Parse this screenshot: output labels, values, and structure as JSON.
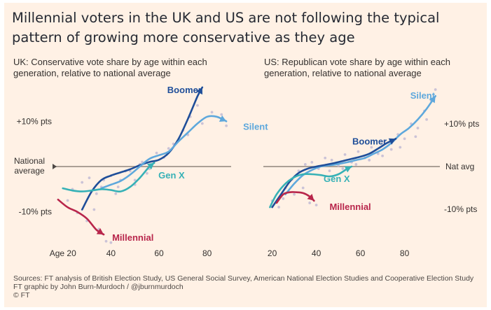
{
  "headline": "Millennial voters in the UK and US are not following the typical pattern of growing more conservative as they age",
  "footer": {
    "sources": "Sources: FT analysis of British Election Study, US General Social Survey, American National Election Studies and Cooperative Election Study",
    "credit": "FT graphic by John Burn-Murdoch / @jburnmurdoch",
    "copyright": "© FT"
  },
  "colors": {
    "background": "#fff1e5",
    "boomer": "#1f4e99",
    "silent": "#5ea8dc",
    "genx": "#36b1b6",
    "millennial": "#b8264b",
    "baseline": "#8f857d",
    "points": "#b9b3d2"
  },
  "chart_data": [
    {
      "type": "line",
      "panel": "UK",
      "title": "UK: Conservative vote share by age within each generation, relative to national average",
      "xlabel": "",
      "ylabel": "",
      "xlim": [
        16,
        90
      ],
      "ylim": [
        -17,
        17
      ],
      "x_ticks": [
        {
          "value": 20,
          "label": "Age 20"
        },
        {
          "value": 40,
          "label": "40"
        },
        {
          "value": 60,
          "label": "60"
        },
        {
          "value": 80,
          "label": "80"
        }
      ],
      "y_ticks": [
        {
          "value": 10,
          "label": "+10% pts"
        },
        {
          "value": -10,
          "label": "-10% pts"
        }
      ],
      "reference_line": {
        "value": 0,
        "label": "National average"
      },
      "grid": false,
      "legend": "direct labels on lines",
      "series": [
        {
          "name": "Boomer",
          "color": "#1f4e99",
          "x": [
            28,
            32,
            36,
            40,
            44,
            48,
            52,
            56,
            60,
            64,
            68,
            72,
            76,
            78
          ],
          "y": [
            -9.5,
            -5.5,
            -3.0,
            -2.0,
            -1.3,
            -0.6,
            0.3,
            1.0,
            1.5,
            3.0,
            6.0,
            10.5,
            15.5,
            17.5
          ]
        },
        {
          "name": "Silent",
          "color": "#5ea8dc",
          "x": [
            36,
            40,
            44,
            48,
            52,
            56,
            60,
            64,
            68,
            72,
            76,
            80,
            84,
            88
          ],
          "y": [
            -4.8,
            -4.0,
            -3.2,
            -1.8,
            0.0,
            1.7,
            2.5,
            3.3,
            5.5,
            7.5,
            9.5,
            11.0,
            11.0,
            10.0
          ]
        },
        {
          "name": "Gen X",
          "color": "#36b1b6",
          "x": [
            20,
            24,
            28,
            32,
            36,
            40,
            44,
            48,
            52,
            56,
            58
          ],
          "y": [
            -4.8,
            -5.3,
            -5.5,
            -5.3,
            -5.0,
            -5.2,
            -5.5,
            -4.5,
            -2.5,
            0.0,
            0.8
          ]
        },
        {
          "name": "Millennial",
          "color": "#b8264b",
          "x": [
            18,
            22,
            26,
            30,
            34,
            37
          ],
          "y": [
            -7.3,
            -9.0,
            -10.0,
            -11.5,
            -14.0,
            -15.0
          ]
        }
      ],
      "scatter_points": [
        [
          22,
          -7.5
        ],
        [
          26,
          -10.2
        ],
        [
          30,
          -12.0
        ],
        [
          33,
          -9.5
        ],
        [
          35,
          -13.8
        ],
        [
          38,
          -16.5
        ],
        [
          40,
          -16.8
        ],
        [
          28,
          -3.5
        ],
        [
          31,
          -2.5
        ],
        [
          34,
          -6.0
        ],
        [
          37,
          -3.0
        ],
        [
          40,
          -2.0
        ],
        [
          43,
          -4.5
        ],
        [
          46,
          -1.0
        ],
        [
          50,
          -3.0
        ],
        [
          53,
          1.0
        ],
        [
          56,
          -0.5
        ],
        [
          59,
          3.0
        ],
        [
          62,
          2.0
        ],
        [
          66,
          5.0
        ],
        [
          70,
          8.0
        ],
        [
          73,
          11.0
        ],
        [
          76,
          13.5
        ],
        [
          44,
          -3.0
        ],
        [
          48,
          -1.0
        ],
        [
          52,
          0.5
        ],
        [
          64,
          4.0
        ],
        [
          72,
          7.0
        ],
        [
          78,
          9.5
        ],
        [
          82,
          12.0
        ],
        [
          86,
          11.5
        ],
        [
          88,
          9.0
        ],
        [
          24,
          -5.0
        ],
        [
          36,
          -4.5
        ],
        [
          42,
          -6.0
        ],
        [
          50,
          -4.0
        ],
        [
          55,
          -1.5
        ]
      ],
      "annotations": [
        {
          "text": "Boomer",
          "series": "Boomer"
        },
        {
          "text": "Silent",
          "series": "Silent"
        },
        {
          "text": "Gen X",
          "series": "Gen X"
        },
        {
          "text": "Millennial",
          "series": "Millennial"
        }
      ]
    },
    {
      "type": "line",
      "panel": "US",
      "title": "US: Republican vote share by age within each generation, relative to national average",
      "xlabel": "",
      "ylabel": "",
      "xlim": [
        16,
        96
      ],
      "ylim": [
        -18,
        18
      ],
      "x_ticks": [
        {
          "value": 20,
          "label": "20"
        },
        {
          "value": 40,
          "label": "40"
        },
        {
          "value": 60,
          "label": "60"
        },
        {
          "value": 80,
          "label": "80"
        }
      ],
      "y_ticks": [
        {
          "value": 10,
          "label": "+10% pts"
        },
        {
          "value": -10,
          "label": "-10% pts"
        }
      ],
      "reference_line": {
        "value": 0,
        "label": "Nat avg"
      },
      "grid": false,
      "legend": "direct labels on lines",
      "series": [
        {
          "name": "Silent",
          "color": "#5ea8dc",
          "x": [
            26,
            30,
            34,
            38,
            42,
            46,
            50,
            54,
            58,
            62,
            66,
            70,
            74,
            78,
            82,
            86,
            90,
            94
          ],
          "y": [
            -6.5,
            -4.0,
            -2.0,
            -0.8,
            0.0,
            0.3,
            0.6,
            1.0,
            1.5,
            2.0,
            3.0,
            4.0,
            5.5,
            7.5,
            9.0,
            11.0,
            13.5,
            16.5
          ]
        },
        {
          "name": "Boomer",
          "color": "#1f4e99",
          "x": [
            20,
            24,
            28,
            32,
            36,
            40,
            44,
            48,
            52,
            56,
            60,
            64,
            68,
            72,
            76
          ],
          "y": [
            -9.5,
            -6.5,
            -3.5,
            -1.5,
            -0.5,
            0.0,
            0.4,
            0.8,
            1.3,
            1.8,
            2.3,
            3.0,
            4.2,
            5.5,
            6.5
          ]
        },
        {
          "name": "Gen X",
          "color": "#36b1b6",
          "x": [
            19,
            22,
            26,
            30,
            34,
            38,
            42,
            46,
            50,
            54,
            56
          ],
          "y": [
            -9.5,
            -6.5,
            -4.0,
            -2.5,
            -1.8,
            -1.8,
            -2.0,
            -2.3,
            -1.8,
            -0.5,
            0.0
          ]
        },
        {
          "name": "Millennial",
          "color": "#b8264b",
          "x": [
            22,
            25,
            28,
            31,
            34,
            37,
            39
          ],
          "y": [
            -8.5,
            -6.5,
            -6.0,
            -6.0,
            -6.2,
            -7.0,
            -8.0
          ]
        }
      ],
      "scatter_points": [
        [
          20,
          -8.0
        ],
        [
          23,
          -9.5
        ],
        [
          26,
          -5.0
        ],
        [
          29,
          -3.0
        ],
        [
          32,
          -1.0
        ],
        [
          35,
          0.5
        ],
        [
          38,
          1.0
        ],
        [
          41,
          -0.5
        ],
        [
          44,
          2.0
        ],
        [
          47,
          1.5
        ],
        [
          50,
          0.2
        ],
        [
          53,
          2.8
        ],
        [
          56,
          1.0
        ],
        [
          59,
          3.5
        ],
        [
          62,
          2.0
        ],
        [
          65,
          4.5
        ],
        [
          68,
          3.0
        ],
        [
          71,
          6.0
        ],
        [
          74,
          4.0
        ],
        [
          77,
          7.5
        ],
        [
          80,
          6.5
        ],
        [
          83,
          10.0
        ],
        [
          86,
          9.0
        ],
        [
          89,
          13.0
        ],
        [
          92,
          15.5
        ],
        [
          94,
          18.0
        ],
        [
          30,
          -6.5
        ],
        [
          34,
          -5.0
        ],
        [
          37,
          -8.5
        ],
        [
          40,
          -9.0
        ],
        [
          25,
          -7.5
        ],
        [
          46,
          -1.0
        ],
        [
          52,
          -0.5
        ],
        [
          58,
          0.5
        ],
        [
          64,
          1.5
        ],
        [
          70,
          2.5
        ],
        [
          78,
          4.5
        ],
        [
          85,
          7.0
        ],
        [
          90,
          11.0
        ]
      ],
      "annotations": [
        {
          "text": "Silent",
          "series": "Silent"
        },
        {
          "text": "Boomer",
          "series": "Boomer"
        },
        {
          "text": "Gen X",
          "series": "Gen X"
        },
        {
          "text": "Millennial",
          "series": "Millennial"
        }
      ]
    }
  ]
}
